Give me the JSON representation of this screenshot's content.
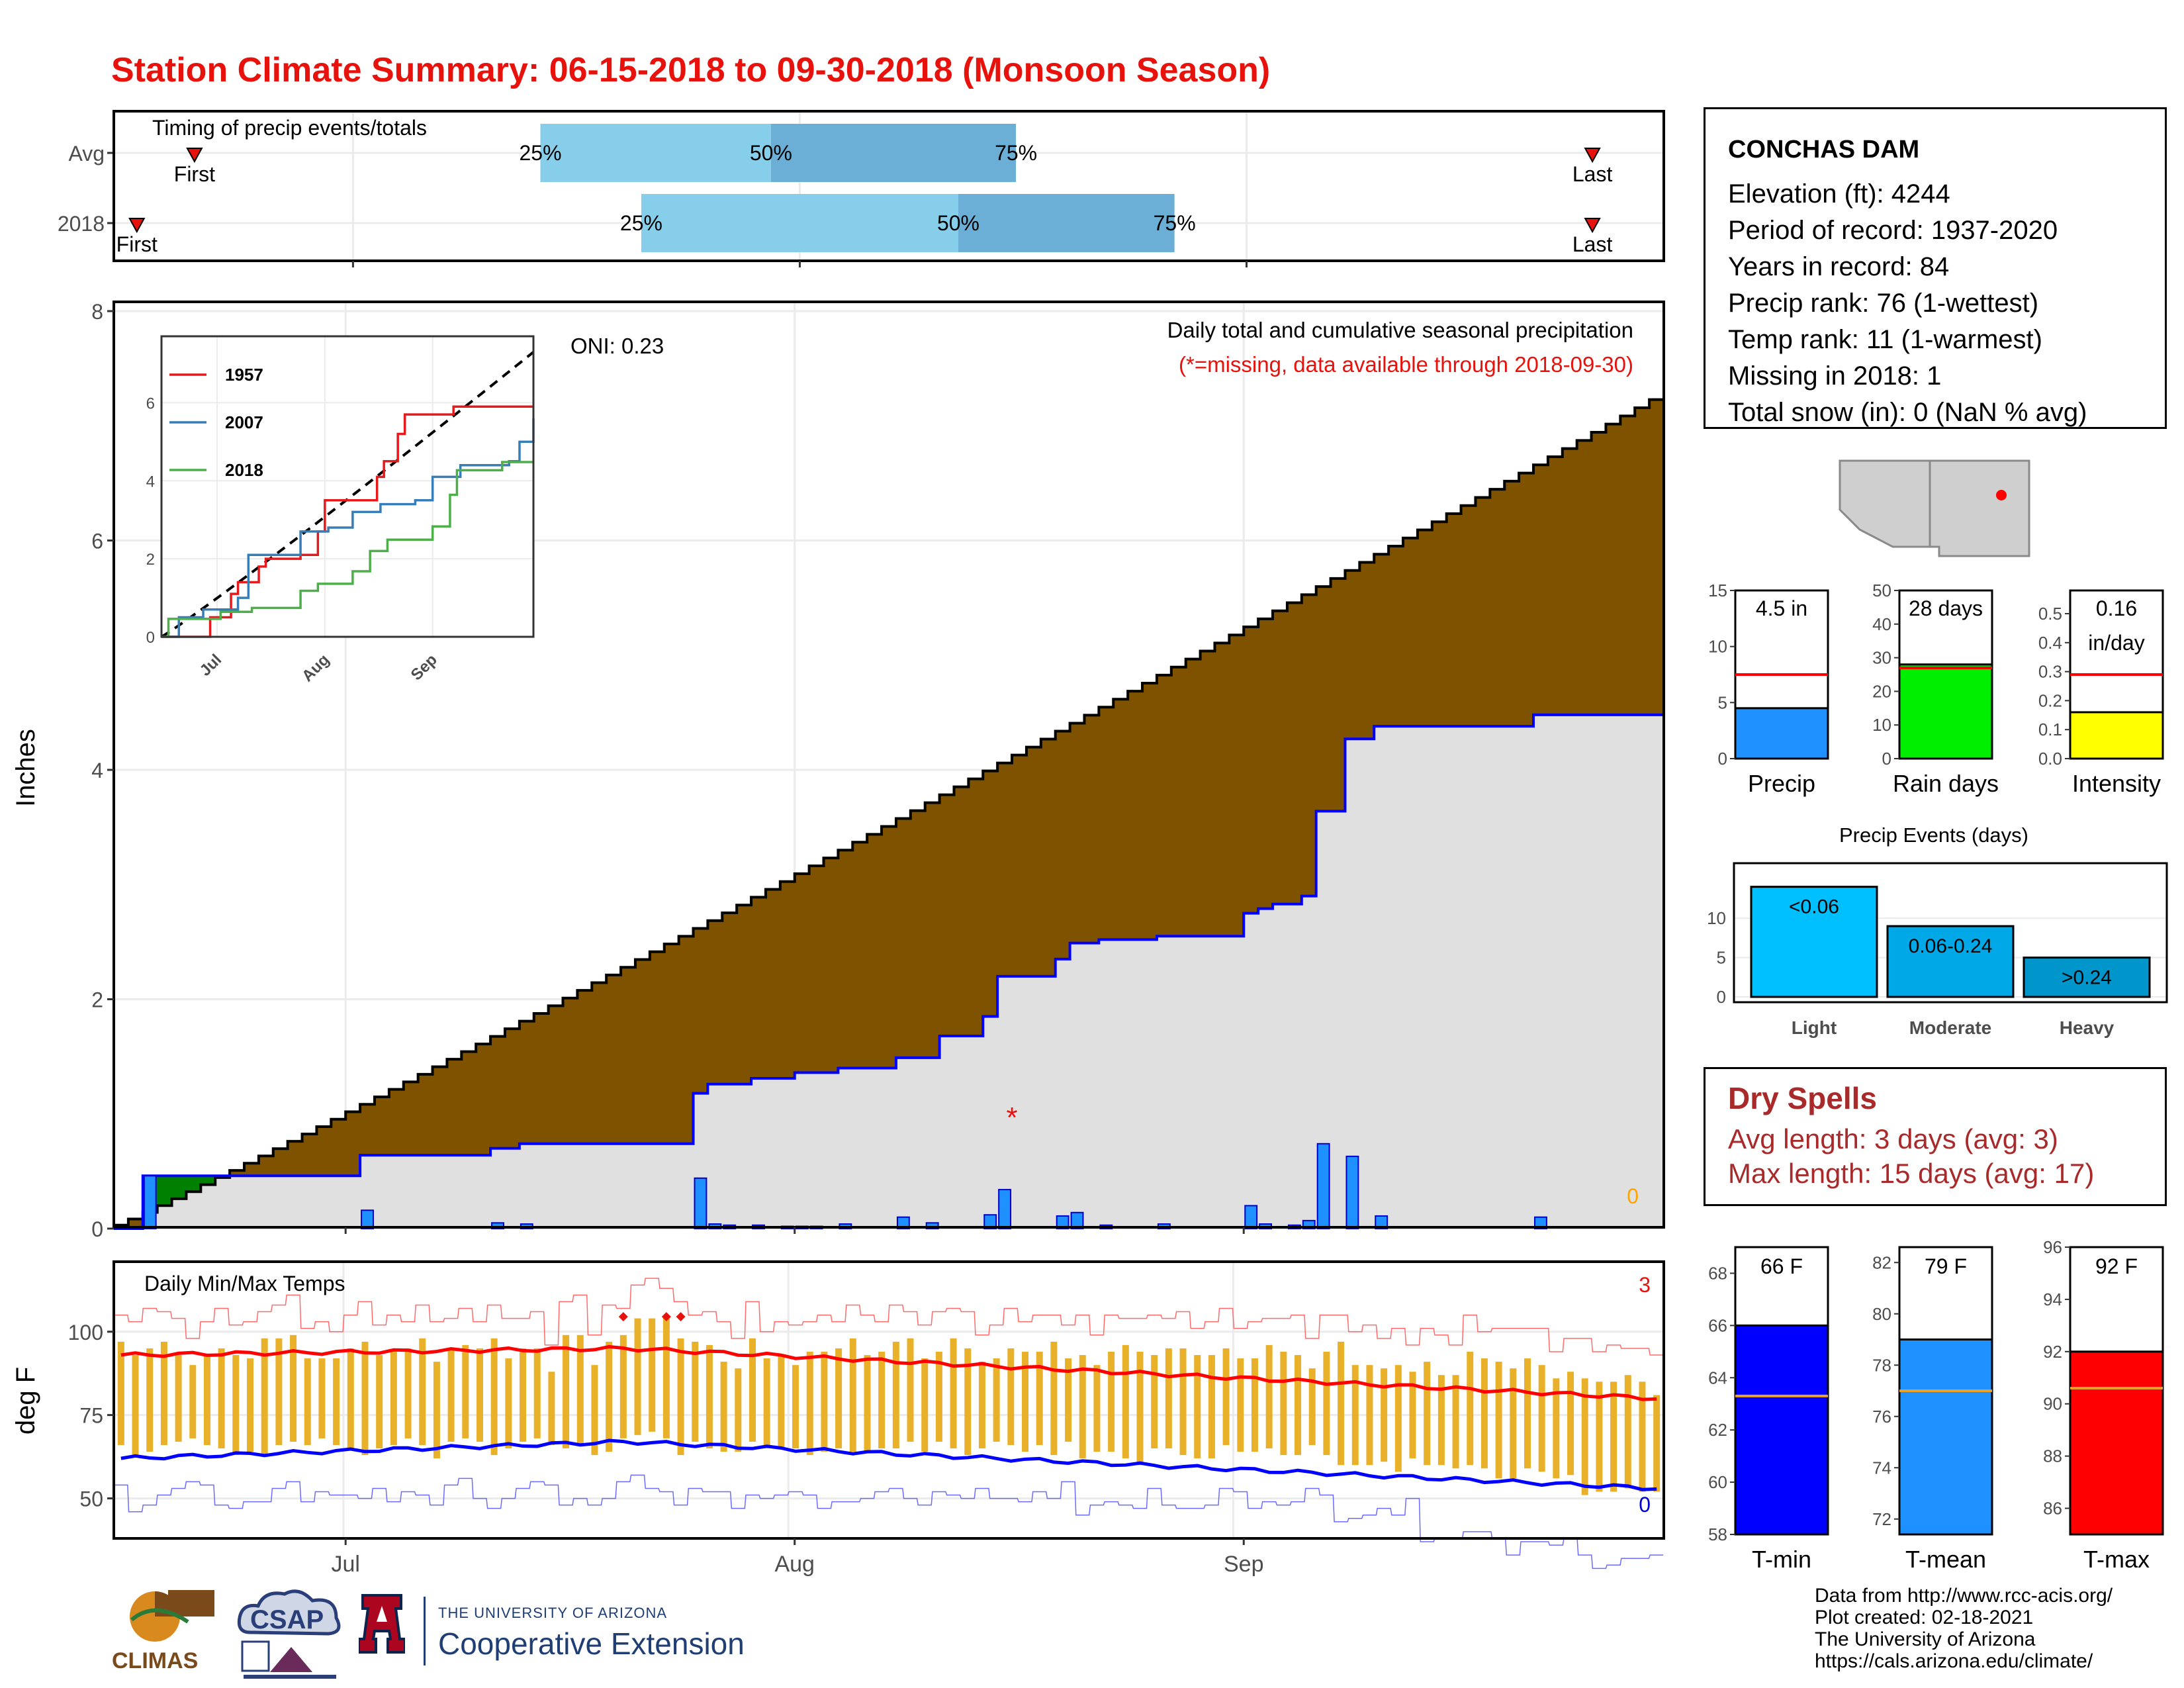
{
  "page": {
    "title": "Station Climate Summary: 06-15-2018 to 09-30-2018 (Monsoon Season)"
  },
  "station": {
    "name": "CONCHAS DAM",
    "lines": [
      "Elevation (ft): 4244",
      "Period of record: 1937-2020",
      "Years in record: 84",
      "Precip rank: 76 (1-wettest)",
      "Temp rank: 11 (1-warmest)",
      "Missing in 2018: 1",
      "Total snow (in): 0 (NaN % avg)"
    ]
  },
  "dry_spells": {
    "title": "Dry Spells",
    "avg_length": "Avg length: 3 days (avg: 3)",
    "max_length": "Max length: 15 days (avg: 17)"
  },
  "credits": [
    "Data from http://www.rcc-acis.org/",
    "Plot created: 02-18-2021",
    "The University of Arizona",
    "https://cals.arizona.edu/climate/"
  ],
  "logos": {
    "climas": "CLIMAS",
    "csap": "CSAP",
    "ua_small": "THE UNIVERSITY OF ARIZONA",
    "ua_big": "Cooperative Extension"
  },
  "colors": {
    "title_red": "#e8120c",
    "above_avg_brown": "#7f5200",
    "below_avg_green": "#008000",
    "obs_fill_gray": "#e0e0e0",
    "precip_bar_blue": "#1e90ff",
    "temp_bar_orange": "#e9b12a",
    "tmin_blue": "#0000ff",
    "tmax_red": "#ff0000",
    "dry_spell_red": "#a82a2a"
  },
  "chart_data": [
    {
      "id": "timing",
      "type": "bar",
      "title": "Timing of precip events/totals",
      "categories": [
        "Avg",
        "2018"
      ],
      "x_range": [
        "2018-06-15",
        "2018-09-30"
      ],
      "rows": [
        {
          "label": "Avg",
          "first": "2018-06-20",
          "p25": "2018-07-14",
          "p50": "2018-07-30",
          "p75": "2018-08-16",
          "last": "2018-09-25",
          "first_label": "First",
          "last_label": "Last",
          "p25_label": "25%",
          "p50_label": "50%",
          "p75_label": "75%"
        },
        {
          "label": "2018",
          "first": "2018-06-16",
          "p25": "2018-07-21",
          "p50": "2018-08-12",
          "p75": "2018-08-27",
          "last": "2018-09-25",
          "first_label": "First",
          "last_label": "Last",
          "p25_label": "25%",
          "p50_label": "50%",
          "p75_label": "75%"
        }
      ]
    },
    {
      "id": "precip",
      "type": "area",
      "ylabel": "Inches",
      "ylim": [
        0,
        8
      ],
      "yticks": [
        0,
        2,
        4,
        6,
        8
      ],
      "x_ticks": [
        {
          "date": "2018-07-01",
          "label": "Jul"
        },
        {
          "date": "2018-08-01",
          "label": "Aug"
        },
        {
          "date": "2018-09-01",
          "label": "Sep"
        }
      ],
      "annotation": "Daily total and cumulative seasonal precipitation",
      "annotation_red": "(*=missing, data available through 2018-09-30)",
      "oni": "ONI: 0.23",
      "zero_label": "0",
      "missing_marker": {
        "date": "2018-08-16",
        "value": 1.0,
        "label": "*"
      },
      "avg_cumulative": {
        "start": 0.03,
        "end": 7.3
      },
      "observed_cumulative": [
        {
          "date": "2018-06-15",
          "value": 0.0
        },
        {
          "date": "2018-06-17",
          "value": 0.46
        },
        {
          "date": "2018-07-02",
          "value": 0.64
        },
        {
          "date": "2018-07-11",
          "value": 0.7
        },
        {
          "date": "2018-07-13",
          "value": 0.74
        },
        {
          "date": "2018-07-25",
          "value": 1.18
        },
        {
          "date": "2018-07-26",
          "value": 1.26
        },
        {
          "date": "2018-07-29",
          "value": 1.31
        },
        {
          "date": "2018-08-01",
          "value": 1.36
        },
        {
          "date": "2018-08-04",
          "value": 1.4
        },
        {
          "date": "2018-08-08",
          "value": 1.49
        },
        {
          "date": "2018-08-11",
          "value": 1.68
        },
        {
          "date": "2018-08-14",
          "value": 1.85
        },
        {
          "date": "2018-08-15",
          "value": 2.2
        },
        {
          "date": "2018-08-19",
          "value": 2.35
        },
        {
          "date": "2018-08-20",
          "value": 2.49
        },
        {
          "date": "2018-08-22",
          "value": 2.52
        },
        {
          "date": "2018-08-26",
          "value": 2.55
        },
        {
          "date": "2018-09-01",
          "value": 2.75
        },
        {
          "date": "2018-09-02",
          "value": 2.79
        },
        {
          "date": "2018-09-03",
          "value": 2.83
        },
        {
          "date": "2018-09-05",
          "value": 2.9
        },
        {
          "date": "2018-09-06",
          "value": 3.64
        },
        {
          "date": "2018-09-08",
          "value": 4.27
        },
        {
          "date": "2018-09-10",
          "value": 4.38
        },
        {
          "date": "2018-09-21",
          "value": 4.48
        },
        {
          "date": "2018-09-30",
          "value": 4.48
        }
      ],
      "daily_bars": [
        {
          "date": "2018-06-17",
          "value": 0.46
        },
        {
          "date": "2018-07-02",
          "value": 0.16
        },
        {
          "date": "2018-07-11",
          "value": 0.05
        },
        {
          "date": "2018-07-13",
          "value": 0.04
        },
        {
          "date": "2018-07-25",
          "value": 0.44
        },
        {
          "date": "2018-07-26",
          "value": 0.04
        },
        {
          "date": "2018-07-27",
          "value": 0.03
        },
        {
          "date": "2018-07-29",
          "value": 0.03
        },
        {
          "date": "2018-07-31",
          "value": 0.02
        },
        {
          "date": "2018-08-01",
          "value": 0.02
        },
        {
          "date": "2018-08-02",
          "value": 0.02
        },
        {
          "date": "2018-08-04",
          "value": 0.04
        },
        {
          "date": "2018-08-08",
          "value": 0.1
        },
        {
          "date": "2018-08-10",
          "value": 0.05
        },
        {
          "date": "2018-08-14",
          "value": 0.12
        },
        {
          "date": "2018-08-15",
          "value": 0.34
        },
        {
          "date": "2018-08-19",
          "value": 0.11
        },
        {
          "date": "2018-08-20",
          "value": 0.14
        },
        {
          "date": "2018-08-22",
          "value": 0.03
        },
        {
          "date": "2018-08-26",
          "value": 0.04
        },
        {
          "date": "2018-09-01",
          "value": 0.2
        },
        {
          "date": "2018-09-02",
          "value": 0.04
        },
        {
          "date": "2018-09-04",
          "value": 0.03
        },
        {
          "date": "2018-09-05",
          "value": 0.07
        },
        {
          "date": "2018-09-06",
          "value": 0.74
        },
        {
          "date": "2018-09-08",
          "value": 0.63
        },
        {
          "date": "2018-09-10",
          "value": 0.11
        },
        {
          "date": "2018-09-21",
          "value": 0.1
        }
      ]
    },
    {
      "id": "inset",
      "type": "line",
      "ylim": [
        0,
        7.5
      ],
      "yticks": [
        0,
        2,
        4,
        6
      ],
      "x_ticks": [
        "Jul",
        "Aug",
        "Sep"
      ],
      "series": [
        {
          "name": "1957",
          "color": "#e41a1c",
          "points": [
            [
              0,
              0
            ],
            [
              10,
              0
            ],
            [
              14,
              0.5
            ],
            [
              20,
              1.1
            ],
            [
              22,
              1.4
            ],
            [
              28,
              1.8
            ],
            [
              30,
              2.0
            ],
            [
              40,
              2.1
            ],
            [
              45,
              2.7
            ],
            [
              47,
              3.5
            ],
            [
              58,
              3.5
            ],
            [
              62,
              4.1
            ],
            [
              64,
              4.5
            ],
            [
              68,
              5.2
            ],
            [
              70,
              5.7
            ],
            [
              84,
              5.9
            ],
            [
              107,
              5.9
            ]
          ]
        },
        {
          "name": "2007",
          "color": "#377eb8",
          "points": [
            [
              0,
              0
            ],
            [
              5,
              0.5
            ],
            [
              12,
              0.7
            ],
            [
              22,
              1.0
            ],
            [
              25,
              2.1
            ],
            [
              32,
              2.1
            ],
            [
              40,
              2.7
            ],
            [
              48,
              2.8
            ],
            [
              55,
              3.2
            ],
            [
              63,
              3.4
            ],
            [
              73,
              3.5
            ],
            [
              78,
              4.1
            ],
            [
              86,
              4.4
            ],
            [
              100,
              4.5
            ],
            [
              103,
              5.0
            ],
            [
              107,
              5.6
            ]
          ]
        },
        {
          "name": "2018",
          "color": "#4daf4a",
          "points": [
            [
              0,
              0
            ],
            [
              2,
              0.46
            ],
            [
              17,
              0.64
            ],
            [
              26,
              0.74
            ],
            [
              40,
              1.18
            ],
            [
              45,
              1.36
            ],
            [
              55,
              1.68
            ],
            [
              60,
              2.2
            ],
            [
              65,
              2.49
            ],
            [
              78,
              2.83
            ],
            [
              83,
              3.64
            ],
            [
              85,
              4.27
            ],
            [
              98,
              4.48
            ],
            [
              107,
              4.48
            ]
          ]
        }
      ],
      "avg_dashed": {
        "start": 0.0,
        "end": 7.3
      }
    },
    {
      "id": "gauges",
      "type": "bar",
      "items": [
        {
          "label": "Precip",
          "value": 4.5,
          "value_label": "4.5 in",
          "value_label2": "",
          "avg": 7.5,
          "ylim": [
            0,
            15
          ],
          "yticks": [
            "0",
            "5",
            "10",
            "15"
          ],
          "color": "#1e90ff",
          "avg_color": "#ff0000"
        },
        {
          "label": "Rain days",
          "value": 28,
          "value_label": "28 days",
          "value_label2": "",
          "avg": 27,
          "ylim": [
            0,
            50
          ],
          "yticks": [
            "0",
            "10",
            "20",
            "30",
            "40",
            "50"
          ],
          "color": "#00ee00",
          "avg_color": "#ff0000"
        },
        {
          "label": "Intensity",
          "value": 0.16,
          "value_label": "0.16",
          "value_label2": "in/day",
          "avg": 0.29,
          "ylim": [
            0,
            0.58
          ],
          "yticks": [
            "0.0",
            "0.1",
            "0.2",
            "0.3",
            "0.4",
            "0.5"
          ],
          "color": "#ffff00",
          "avg_color": "#ff0000"
        }
      ]
    },
    {
      "id": "events",
      "type": "bar",
      "title": "Precip Events (days)",
      "ylim": [
        0,
        17
      ],
      "yticks": [
        0,
        5,
        10
      ],
      "categories": [
        "Light",
        "Moderate",
        "Heavy"
      ],
      "values": [
        14,
        9,
        5
      ],
      "bar_labels": [
        "<0.06",
        "0.06-0.24",
        ">0.24"
      ],
      "colors": [
        "#00bfff",
        "#00a8e8",
        "#0096cc"
      ]
    },
    {
      "id": "temps",
      "type": "bar",
      "title": "Daily Min/Max Temps",
      "ylabel": "deg F",
      "ylim": [
        38,
        121
      ],
      "yticks": [
        50,
        75,
        100
      ],
      "record_high_count": "3",
      "record_low_count": "0",
      "tmin_series": [
        66,
        63,
        64,
        66,
        67,
        68,
        66,
        65,
        63,
        64,
        63,
        66,
        67,
        66,
        68,
        66,
        65,
        63,
        65,
        66,
        68,
        66,
        62,
        67,
        68,
        67,
        63,
        65,
        67,
        68,
        66,
        65,
        66,
        63,
        64,
        68,
        69,
        70,
        68,
        63,
        67,
        65,
        64,
        64,
        67,
        65,
        65,
        65,
        63,
        64,
        65,
        64,
        64,
        65,
        65,
        67,
        64,
        67,
        65,
        63,
        65,
        67,
        66,
        64,
        66,
        63,
        67,
        62,
        64,
        64,
        62,
        60,
        65,
        65,
        63,
        62,
        62,
        66,
        64,
        64,
        65,
        63,
        63,
        66,
        63,
        60,
        60,
        60,
        61,
        58,
        62,
        60,
        60,
        59,
        60,
        59,
        56,
        56,
        59,
        58,
        56,
        57,
        51,
        52,
        52,
        53,
        52,
        52
      ],
      "tmax_series": [
        97,
        93,
        95,
        97,
        93,
        90,
        93,
        95,
        93,
        92,
        98,
        98,
        99,
        92,
        92,
        92,
        95,
        97,
        93,
        94,
        95,
        98,
        91,
        95,
        96,
        95,
        98,
        92,
        95,
        95,
        88,
        99,
        99,
        90,
        97,
        99,
        104,
        104,
        104,
        98,
        97,
        96,
        91,
        89,
        98,
        92,
        93,
        90,
        94,
        94,
        95,
        98,
        93,
        94,
        97,
        98,
        92,
        94,
        98,
        95,
        91,
        92,
        95,
        94,
        94,
        97,
        92,
        93,
        90,
        94,
        96,
        94,
        93,
        95,
        95,
        93,
        93,
        95,
        92,
        92,
        96,
        94,
        93,
        89,
        94,
        97,
        90,
        90,
        89,
        90,
        88,
        91,
        87,
        87,
        94,
        92,
        91,
        89,
        92,
        90,
        86,
        88,
        86,
        85,
        85,
        87,
        85,
        81
      ],
      "tmin_avg": {
        "start": 62,
        "peak": 67,
        "end": 53
      },
      "tmax_avg": {
        "start": 93,
        "peak": 95,
        "end": 80
      },
      "record_high_dates": [
        "2018-07-20",
        "2018-07-23",
        "2018-07-24"
      ]
    },
    {
      "id": "temp_gauges",
      "type": "bar",
      "items": [
        {
          "label": "T-min",
          "value": 66,
          "value_label": "66 F",
          "avg": 63.3,
          "ylim": [
            58,
            69
          ],
          "yticks": [
            58,
            60,
            62,
            64,
            66,
            68
          ],
          "color": "#0000ff"
        },
        {
          "label": "T-mean",
          "value": 79,
          "value_label": "79 F",
          "avg": 77,
          "ylim": [
            71.4,
            82.6
          ],
          "yticks": [
            72,
            74,
            76,
            78,
            80,
            82
          ],
          "color": "#1e90ff"
        },
        {
          "label": "T-max",
          "value": 92,
          "value_label": "92 F",
          "avg": 90.6,
          "ylim": [
            85,
            96
          ],
          "yticks": [
            86,
            88,
            90,
            92,
            94,
            96
          ],
          "color": "#ff0000"
        }
      ]
    }
  ]
}
